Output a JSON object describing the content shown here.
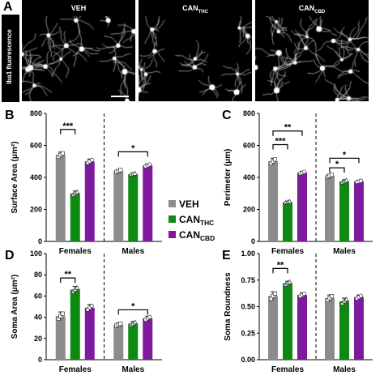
{
  "panel_a": {
    "letter": "A",
    "ylabel": "Iba1 fluorescence",
    "groups": [
      {
        "main": "VEH",
        "sub": ""
      },
      {
        "main": "CAN",
        "sub": "THC"
      },
      {
        "main": "CAN",
        "sub": "CBD"
      }
    ]
  },
  "legend": [
    {
      "main": "VEH",
      "sub": "",
      "color": "#8c8c8c",
      "marker": "square"
    },
    {
      "main": "CAN",
      "sub": "THC",
      "color": "#0e8a12",
      "marker": "triangle"
    },
    {
      "main": "CAN",
      "sub": "CBD",
      "color": "#7e1a9e",
      "marker": "circle"
    }
  ],
  "chart_data": [
    {
      "type": "bar",
      "letter": "B",
      "ylabel": "Surface Area (μm²)",
      "ylim": [
        0,
        800
      ],
      "yticks": [
        0,
        200,
        400,
        600,
        800
      ],
      "tick_decimals": 0,
      "categories": [
        "Females",
        "Males"
      ],
      "series": [
        {
          "values": [
            540,
            440
          ],
          "errors": [
            18,
            10
          ]
        },
        {
          "values": [
            300,
            420
          ],
          "errors": [
            15,
            6
          ]
        },
        {
          "values": [
            500,
            475
          ],
          "errors": [
            15,
            10
          ]
        }
      ],
      "brackets": [
        {
          "group": 0,
          "from": 0,
          "to": 1,
          "level": 700,
          "label": "***"
        },
        {
          "group": 1,
          "from": 0,
          "to": 2,
          "level": 560,
          "label": "*"
        }
      ]
    },
    {
      "type": "bar",
      "letter": "C",
      "ylabel": "Perimeter (μm)",
      "ylim": [
        0,
        800
      ],
      "yticks": [
        0,
        200,
        400,
        600,
        800
      ],
      "tick_decimals": 0,
      "categories": [
        "Females",
        "Males"
      ],
      "series": [
        {
          "values": [
            500,
            410
          ],
          "errors": [
            20,
            10
          ]
        },
        {
          "values": [
            245,
            375
          ],
          "errors": [
            6,
            10
          ]
        },
        {
          "values": [
            430,
            375
          ],
          "errors": [
            8,
            6
          ]
        }
      ],
      "brackets": [
        {
          "group": 0,
          "from": 0,
          "to": 2,
          "level": 690,
          "label": "**"
        },
        {
          "group": 0,
          "from": 0,
          "to": 1,
          "level": 605,
          "label": "***"
        },
        {
          "group": 1,
          "from": 0,
          "to": 2,
          "level": 520,
          "label": "*"
        },
        {
          "group": 1,
          "from": 0,
          "to": 1,
          "level": 460,
          "label": "*"
        }
      ]
    },
    {
      "type": "bar",
      "letter": "D",
      "ylabel": "Soma Area (μm²)",
      "ylim": [
        0,
        100
      ],
      "yticks": [
        0,
        20,
        40,
        60,
        80,
        100
      ],
      "tick_decimals": 0,
      "categories": [
        "Females",
        "Males"
      ],
      "series": [
        {
          "values": [
            41,
            33
          ],
          "errors": [
            4,
            1.5
          ]
        },
        {
          "values": [
            66,
            34
          ],
          "errors": [
            3,
            2
          ]
        },
        {
          "values": [
            49,
            39
          ],
          "errors": [
            3,
            2
          ]
        }
      ],
      "brackets": [
        {
          "group": 0,
          "from": 0,
          "to": 1,
          "level": 77,
          "label": "**"
        },
        {
          "group": 1,
          "from": 0,
          "to": 2,
          "level": 47,
          "label": "*"
        }
      ]
    },
    {
      "type": "bar",
      "letter": "E",
      "ylabel": "Soma Roundness",
      "ylim": [
        0,
        1.0
      ],
      "yticks": [
        0,
        0.25,
        0.5,
        0.75,
        1.0
      ],
      "tick_decimals": 2,
      "categories": [
        "Females",
        "Males"
      ],
      "series": [
        {
          "values": [
            0.6,
            0.58
          ],
          "errors": [
            0.04,
            0.03
          ]
        },
        {
          "values": [
            0.72,
            0.55
          ],
          "errors": [
            0.02,
            0.03
          ]
        },
        {
          "values": [
            0.61,
            0.59
          ],
          "errors": [
            0.02,
            0.02
          ]
        }
      ],
      "brackets": [
        {
          "group": 0,
          "from": 0,
          "to": 1,
          "level": 0.86,
          "label": "**"
        }
      ]
    }
  ]
}
